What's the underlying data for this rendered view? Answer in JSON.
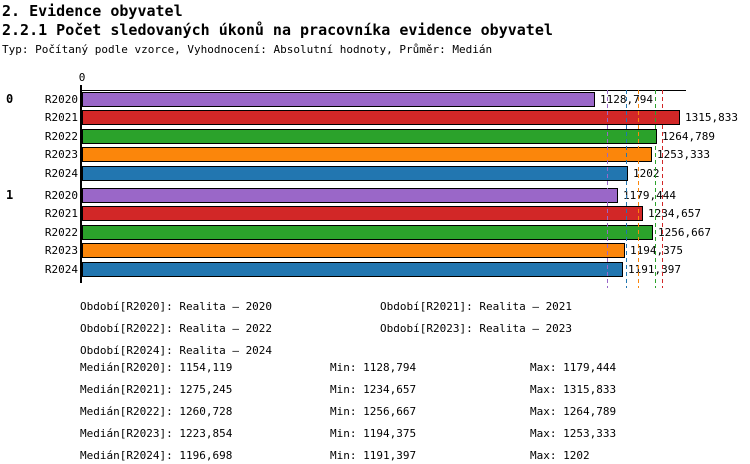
{
  "header": {
    "title1": "2. Evidence obyvatel",
    "title2": "2.2.1 Počet sledovaných úkonů na pracovníka evidence obyvatel",
    "subtitle": "Typ: Počítaný podle vzorce, Vyhodnocení: Absolutní hodnoty, Průměr: Medián"
  },
  "chart_data": {
    "type": "bar",
    "orientation": "horizontal",
    "title": "2.2.1 Počet sledovaných úkonů na pracovníka evidence obyvatel",
    "axis_origin_label": "0",
    "xlim": [
      0,
      1330
    ],
    "grid": false,
    "categories": [
      "R2020",
      "R2021",
      "R2022",
      "R2023",
      "R2024"
    ],
    "series_colors": {
      "R2020": "#9a67c8",
      "R2021": "#d22727",
      "R2022": "#2ba22b",
      "R2023": "#fb860b",
      "R2024": "#2276b0"
    },
    "groups": [
      {
        "label": "0",
        "bars": [
          {
            "series": "R2020",
            "value": 1128.794,
            "value_label": "1128,794",
            "color": "#9a67c8"
          },
          {
            "series": "R2021",
            "value": 1315.833,
            "value_label": "1315,833",
            "color": "#d22727"
          },
          {
            "series": "R2022",
            "value": 1264.789,
            "value_label": "1264,789",
            "color": "#2ba22b"
          },
          {
            "series": "R2023",
            "value": 1253.333,
            "value_label": "1253,333",
            "color": "#fb860b"
          },
          {
            "series": "R2024",
            "value": 1202,
            "value_label": "1202",
            "color": "#2276b0"
          }
        ]
      },
      {
        "label": "1",
        "bars": [
          {
            "series": "R2020",
            "value": 1179.444,
            "value_label": "1179,444",
            "color": "#9a67c8"
          },
          {
            "series": "R2021",
            "value": 1234.657,
            "value_label": "1234,657",
            "color": "#d22727"
          },
          {
            "series": "R2022",
            "value": 1256.667,
            "value_label": "1256,667",
            "color": "#2ba22b"
          },
          {
            "series": "R2023",
            "value": 1194.375,
            "value_label": "1194,375",
            "color": "#fb860b"
          },
          {
            "series": "R2024",
            "value": 1191.397,
            "value_label": "1191,397",
            "color": "#2276b0"
          }
        ]
      }
    ],
    "median_lines": [
      {
        "series": "R2020",
        "value": 1154.119,
        "color": "#9a67c8"
      },
      {
        "series": "R2024",
        "value": 1196.698,
        "color": "#2276b0"
      },
      {
        "series": "R2023",
        "value": 1223.854,
        "color": "#fb860b"
      },
      {
        "series": "R2022",
        "value": 1260.728,
        "color": "#2ba22b"
      },
      {
        "series": "R2021",
        "value": 1275.245,
        "color": "#d22727"
      }
    ]
  },
  "legend": {
    "periods": [
      {
        "text": "Období[R2020]: Realita – 2020"
      },
      {
        "text": "Období[R2021]: Realita – 2021"
      },
      {
        "text": "Období[R2022]: Realita – 2022"
      },
      {
        "text": "Období[R2023]: Realita – 2023"
      },
      {
        "text": "Období[R2024]: Realita – 2024"
      }
    ]
  },
  "stats": {
    "rows": [
      {
        "median": "Medián[R2020]: 1154,119",
        "min": "Min: 1128,794",
        "max": "Max: 1179,444"
      },
      {
        "median": "Medián[R2021]: 1275,245",
        "min": "Min: 1234,657",
        "max": "Max: 1315,833"
      },
      {
        "median": "Medián[R2022]: 1260,728",
        "min": "Min: 1256,667",
        "max": "Max: 1264,789"
      },
      {
        "median": "Medián[R2023]: 1223,854",
        "min": "Min: 1194,375",
        "max": "Max: 1253,333"
      },
      {
        "median": "Medián[R2024]: 1196,698",
        "min": "Min: 1191,397",
        "max": "Max: 1202"
      }
    ]
  }
}
